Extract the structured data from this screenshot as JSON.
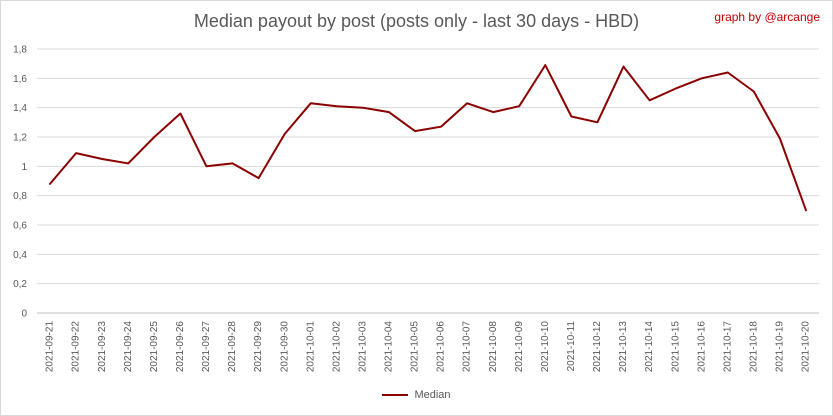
{
  "title": "Median payout by post (posts only - last 30 days - HBD)",
  "credit": "graph by @arcange",
  "chart_data": {
    "type": "line",
    "title": "Median payout by post (posts only - last 30 days - HBD)",
    "x": [
      "2021-09-21",
      "2021-09-22",
      "2021-09-23",
      "2021-09-24",
      "2021-09-25",
      "2021-09-26",
      "2021-09-27",
      "2021-09-28",
      "2021-09-29",
      "2021-09-30",
      "2021-10-01",
      "2021-10-02",
      "2021-10-03",
      "2021-10-04",
      "2021-10-05",
      "2021-10-06",
      "2021-10-07",
      "2021-10-08",
      "2021-10-09",
      "2021-10-10",
      "2021-10-11",
      "2021-10-12",
      "2021-10-13",
      "2021-10-14",
      "2021-10-15",
      "2021-10-16",
      "2021-10-17",
      "2021-10-18",
      "2021-10-19",
      "2021-10-20"
    ],
    "series": [
      {
        "name": "Median",
        "color": "#8b0000",
        "values": [
          0.88,
          1.09,
          1.05,
          1.02,
          1.2,
          1.36,
          1.0,
          1.02,
          0.92,
          1.22,
          1.43,
          1.41,
          1.4,
          1.37,
          1.24,
          1.27,
          1.43,
          1.37,
          1.41,
          1.69,
          1.34,
          1.3,
          1.68,
          1.45,
          1.53,
          1.6,
          1.64,
          1.51,
          1.19,
          0.7
        ]
      }
    ],
    "y_ticks": [
      "0",
      "0,2",
      "0,4",
      "0,6",
      "0,8",
      "1",
      "1,2",
      "1,4",
      "1,6",
      "1,8"
    ],
    "ylim": [
      0,
      1.8
    ],
    "grid": true,
    "legend_position": "bottom"
  }
}
